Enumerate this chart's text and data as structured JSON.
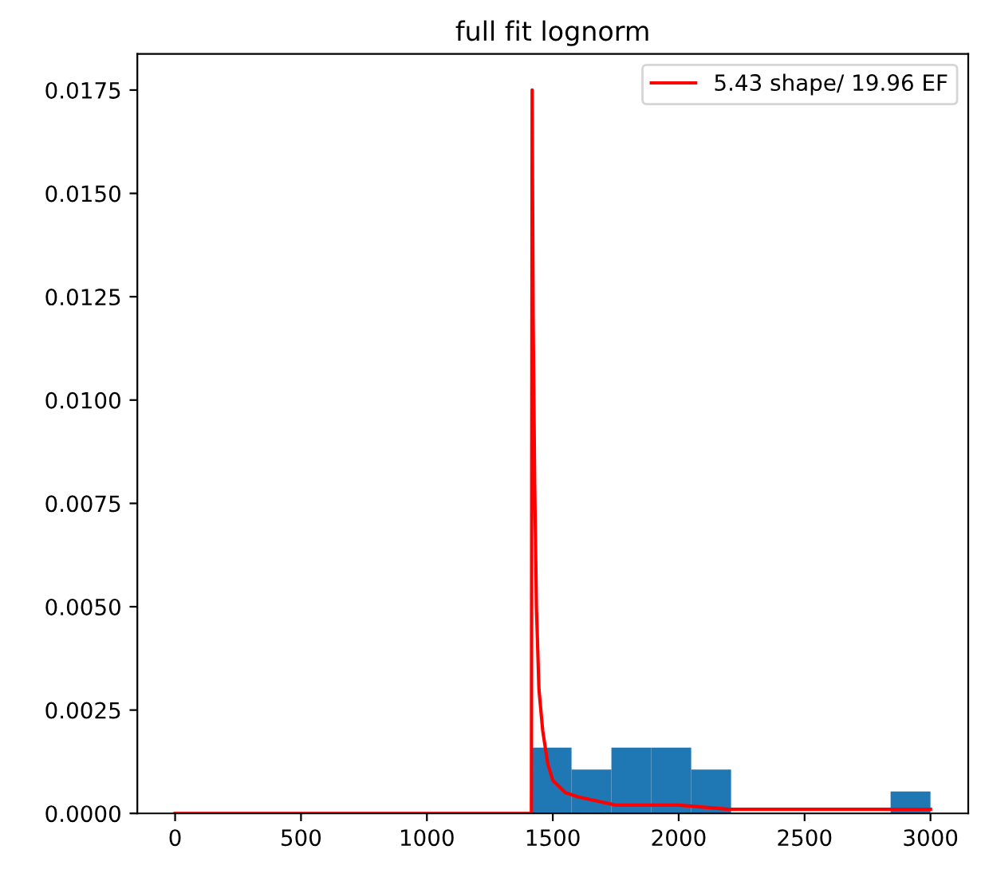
{
  "chart_data": {
    "type": "histogram",
    "title": "full fit lognorm",
    "bins": [
      1416,
      1574.4,
      1732.8,
      1891.2,
      2049.6,
      2208,
      2366.4,
      2524.8,
      2683.2,
      2841.6,
      3000
    ],
    "values": [
      0.00159,
      0.00106,
      0.00159,
      0.00159,
      0.00106,
      0,
      0,
      0,
      0,
      0.00053
    ],
    "color": "#1f77b4",
    "series": [
      {
        "type": "line",
        "name": "5.43 shape/ 19.96 EF",
        "color": "#ff0000",
        "x": [
          0,
          1400,
          1415,
          1418,
          1422,
          1428,
          1435,
          1445,
          1460,
          1480,
          1500,
          1550,
          1600,
          1750,
          2000,
          2200,
          2500,
          3000
        ],
        "values": [
          0,
          0,
          0,
          0.0175,
          0.012,
          0.008,
          0.005,
          0.003,
          0.002,
          0.0012,
          0.0008,
          0.0005,
          0.0004,
          0.0002,
          0.0002,
          0.0001,
          0.0001,
          0.0001
        ]
      }
    ],
    "xlim": [
      -150,
      3150
    ],
    "xticks": [
      0,
      500,
      1000,
      1500,
      2000,
      2500,
      3000
    ],
    "ylim": [
      0,
      0.018375
    ],
    "yticks": [
      {
        "value": 0,
        "label": "0.0000"
      },
      {
        "value": 0.0025,
        "label": "0.0025"
      },
      {
        "value": 0.005,
        "label": "0.0050"
      },
      {
        "value": 0.0075,
        "label": "0.0075"
      },
      {
        "value": 0.01,
        "label": "0.0100"
      },
      {
        "value": 0.0125,
        "label": "0.0125"
      },
      {
        "value": 0.015,
        "label": "0.0150"
      },
      {
        "value": 0.0175,
        "label": "0.0175"
      }
    ],
    "legend": "top right",
    "grid": false
  }
}
